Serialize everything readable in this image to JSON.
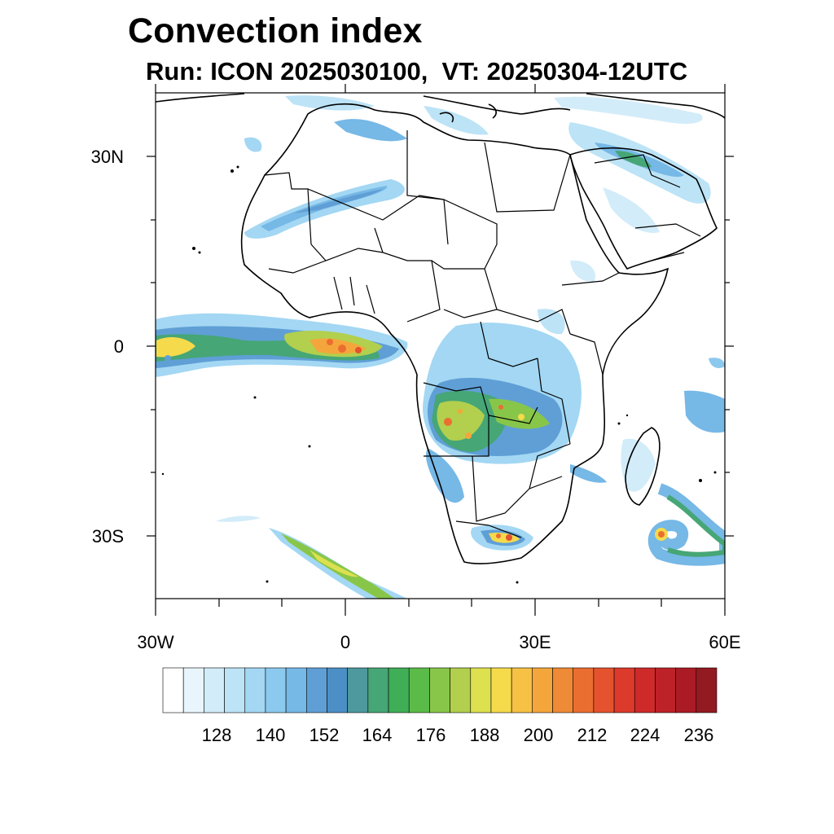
{
  "title": "Convection index",
  "subtitle": "Run: ICON 2025030100,  VT: 20250304-12UTC",
  "map": {
    "lon_range": [
      -30,
      60
    ],
    "lat_range": [
      -40,
      40
    ],
    "lat_labels": [
      "30N",
      "0",
      "30S"
    ],
    "lon_labels": [
      "30W",
      "0",
      "30E",
      "60E"
    ],
    "features": [
      "africa-coastline",
      "arabian-peninsula",
      "madagascar",
      "country-borders"
    ]
  },
  "colorbar": {
    "tick_labels": [
      "128",
      "140",
      "152",
      "164",
      "176",
      "188",
      "200",
      "212",
      "224",
      "236"
    ],
    "colors": [
      "#ffffff",
      "#e9f5fc",
      "#d3ecf9",
      "#bde3f6",
      "#a3d7f3",
      "#8cc9ee",
      "#76b8e6",
      "#5f9fd6",
      "#4c8fc6",
      "#4d999d",
      "#46a676",
      "#3fae57",
      "#5bbb48",
      "#88c64a",
      "#b2cf4d",
      "#dde04f",
      "#f5da4c",
      "#f6c144",
      "#f4a63c",
      "#ef8a36",
      "#eb6e31",
      "#e4532e",
      "#dc3a2b",
      "#cf2a2a",
      "#bd2229",
      "#aa1b25",
      "#921a20"
    ]
  },
  "chart_data": {
    "type": "heatmap",
    "title": "Convection index",
    "subtitle": "Run: ICON 2025030100,  VT: 20250304-12UTC",
    "x_range": [
      -30,
      60
    ],
    "y_range": [
      -40,
      40
    ],
    "colorbar_ticks": [
      128,
      140,
      152,
      164,
      176,
      188,
      200,
      212,
      224,
      236
    ]
  }
}
